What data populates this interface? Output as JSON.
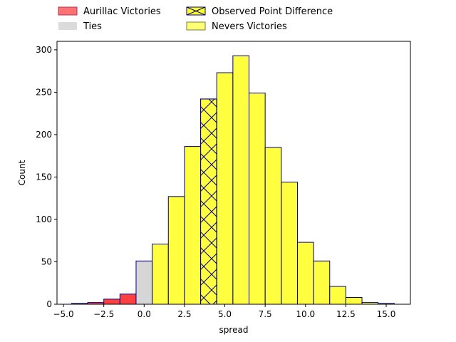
{
  "chart_data": {
    "type": "bar",
    "xlabel": "spread",
    "ylabel": "Count",
    "xlim": [
      -5.4,
      16.5
    ],
    "ylim": [
      0,
      310
    ],
    "bin_width": 1,
    "x_ticks": [
      -5.0,
      -2.5,
      0.0,
      2.5,
      5.0,
      7.5,
      10.0,
      12.5,
      15.0
    ],
    "x_tick_labels": [
      "−5.0",
      "−2.5",
      "0.0",
      "2.5",
      "5.0",
      "7.5",
      "10.0",
      "12.5",
      "15.0"
    ],
    "y_ticks": [
      0,
      50,
      100,
      150,
      200,
      250,
      300
    ],
    "y_tick_labels": [
      "0",
      "50",
      "100",
      "150",
      "200",
      "250",
      "300"
    ],
    "legend_placement": "above plot",
    "series": [
      {
        "name": "Aurillac Victories",
        "color": "#ff0000",
        "bins": [
          {
            "x": -4,
            "count": 1
          },
          {
            "x": -3,
            "count": 2
          },
          {
            "x": -2,
            "count": 6
          },
          {
            "x": -1,
            "count": 12
          }
        ]
      },
      {
        "name": "Ties",
        "color": "#c8c8c8",
        "bins": [
          {
            "x": 0,
            "count": 51
          }
        ]
      },
      {
        "name": "Nevers Victories",
        "color": "#ffff00",
        "bins": [
          {
            "x": 1,
            "count": 71
          },
          {
            "x": 2,
            "count": 127
          },
          {
            "x": 3,
            "count": 186
          },
          {
            "x": 4,
            "count": 242
          },
          {
            "x": 5,
            "count": 273
          },
          {
            "x": 6,
            "count": 293
          },
          {
            "x": 7,
            "count": 249
          },
          {
            "x": 8,
            "count": 185
          },
          {
            "x": 9,
            "count": 144
          },
          {
            "x": 10,
            "count": 73
          },
          {
            "x": 11,
            "count": 51
          },
          {
            "x": 12,
            "count": 21
          },
          {
            "x": 13,
            "count": 8
          },
          {
            "x": 14,
            "count": 2
          },
          {
            "x": 15,
            "count": 1
          }
        ]
      }
    ],
    "highlight": {
      "name": "Observed Point Difference",
      "x": 4,
      "count": 242,
      "pattern": "cross-hatch"
    },
    "legend": [
      {
        "label": "Aurillac Victories",
        "color": "#ff0000",
        "hatch": false
      },
      {
        "label": "Ties",
        "color": "#c8c8c8",
        "hatch": false
      },
      {
        "label": "Observed Point Difference",
        "color": "#ffff00",
        "hatch": true
      },
      {
        "label": "Nevers Victories",
        "color": "#ffff00",
        "hatch": false
      }
    ],
    "edge_color": "#000080"
  }
}
